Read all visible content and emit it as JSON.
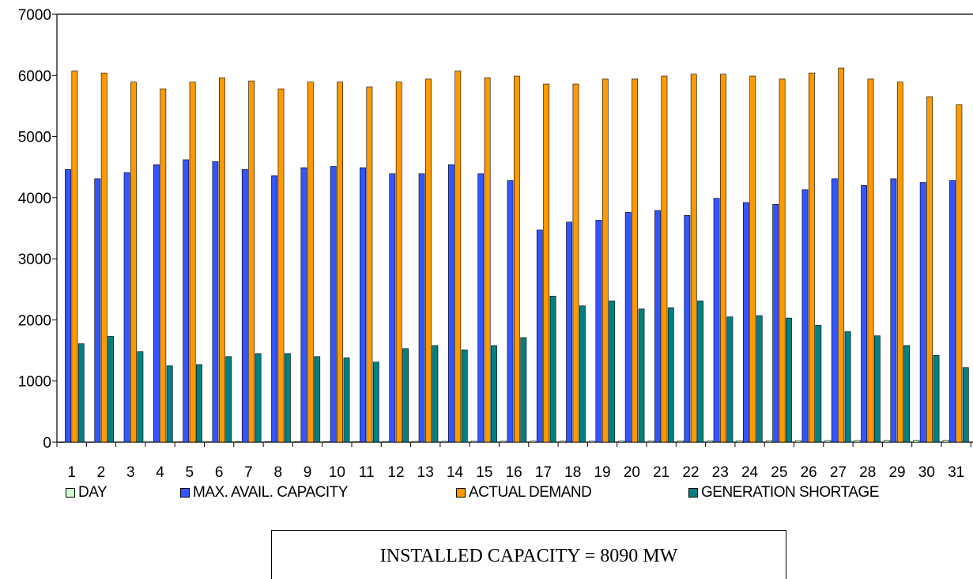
{
  "chart_data": {
    "type": "bar",
    "categories": [
      "1",
      "2",
      "3",
      "4",
      "5",
      "6",
      "7",
      "8",
      "9",
      "10",
      "11",
      "12",
      "13",
      "14",
      "15",
      "16",
      "17",
      "18",
      "19",
      "20",
      "21",
      "22",
      "23",
      "24",
      "25",
      "26",
      "27",
      "28",
      "29",
      "30",
      "31"
    ],
    "ylim": [
      0,
      7000
    ],
    "y_ticks": [
      "0",
      "1000",
      "2000",
      "3000",
      "4000",
      "5000",
      "6000",
      "7000"
    ],
    "grid": false,
    "legend_position": "bottom",
    "series": [
      {
        "name": "DAY",
        "color": "#ccffcc",
        "values": [
          1,
          2,
          3,
          4,
          5,
          6,
          7,
          8,
          9,
          10,
          11,
          12,
          13,
          14,
          15,
          16,
          17,
          18,
          19,
          20,
          21,
          22,
          23,
          24,
          25,
          26,
          27,
          28,
          29,
          30,
          31
        ]
      },
      {
        "name": "MAX. AVAIL. CAPACITY",
        "color": "#3355ff",
        "values": [
          4460,
          4310,
          4410,
          4540,
          4620,
          4590,
          4460,
          4360,
          4490,
          4510,
          4490,
          4390,
          4390,
          4540,
          4390,
          4280,
          3470,
          3600,
          3630,
          3760,
          3790,
          3710,
          3990,
          3920,
          3890,
          4130,
          4310,
          4200,
          4310,
          4250,
          4280
        ]
      },
      {
        "name": "ACTUAL DEMAND",
        "color": "#ff9900",
        "values": [
          6070,
          6040,
          5890,
          5780,
          5890,
          5960,
          5910,
          5780,
          5890,
          5890,
          5810,
          5890,
          5940,
          6070,
          5960,
          5990,
          5860,
          5860,
          5940,
          5940,
          5990,
          6020,
          6020,
          5990,
          5940,
          6040,
          6120,
          5940,
          5890,
          5650,
          5520
        ]
      },
      {
        "name": "GENERATION SHORTAGE",
        "color": "#008080",
        "values": [
          1610,
          1730,
          1480,
          1250,
          1270,
          1400,
          1450,
          1450,
          1400,
          1380,
          1310,
          1530,
          1580,
          1510,
          1580,
          1710,
          2390,
          2230,
          2310,
          2180,
          2200,
          2310,
          2050,
          2070,
          2030,
          1910,
          1810,
          1740,
          1580,
          1420,
          1220
        ]
      }
    ]
  },
  "note": {
    "text": "INSTALLED  CAPACITY = 8090 MW"
  }
}
